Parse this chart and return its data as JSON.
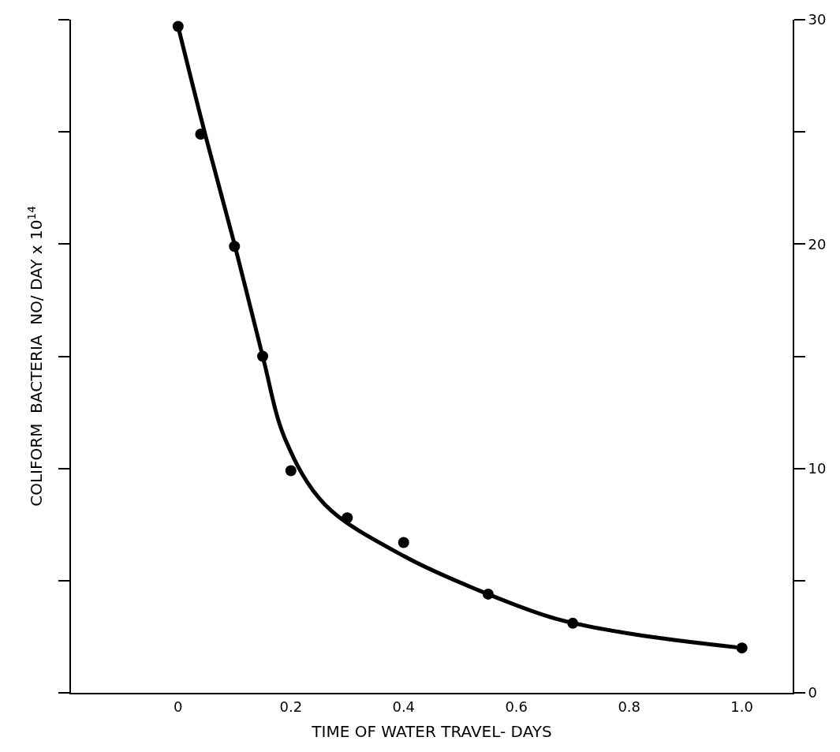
{
  "chart_data": {
    "type": "scatter",
    "xlabel": "TIME OF WATER TRAVEL- DAYS",
    "ylabel": "COLIFORM  BACTERIA  NO/ DAY x 10$^{14}$",
    "x": [
      0,
      0.04,
      0.1,
      0.15,
      0.2,
      0.3,
      0.4,
      0.55,
      0.7,
      1.0
    ],
    "series": [
      {
        "color": "#000000",
        "values": [
          29.7,
          24.9,
          19.9,
          15.0,
          9.9,
          7.8,
          6.7,
          4.4,
          3.1,
          2.0
        ]
      },
      {
        "type": "line",
        "marker": "none",
        "color": "#000000",
        "x": [
          0,
          0.05,
          0.1,
          0.15,
          0.19,
          0.26,
          0.4,
          0.53,
          0.67,
          0.81,
          1.0
        ],
        "values": [
          29.7,
          24.7,
          20.0,
          15.0,
          11.3,
          8.4,
          6.1,
          4.6,
          3.3,
          2.6,
          2.0
        ]
      }
    ],
    "marker": "circle",
    "xlim": [
      -0.19,
      1.09
    ],
    "xticks": [
      0,
      0.2,
      0.4,
      0.6,
      0.8,
      {
        "value": 1.0,
        "label": "1.0"
      }
    ],
    "ylim": [
      0,
      30
    ],
    "yticks": [
      0,
      {
        "value": 5,
        "label": null
      },
      10,
      {
        "value": 15,
        "label": null
      },
      20,
      {
        "value": 25,
        "label": null
      },
      30
    ],
    "line_style": "solid"
  }
}
